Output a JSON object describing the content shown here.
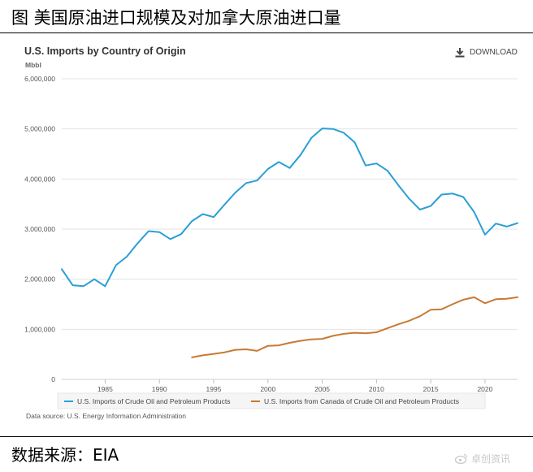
{
  "figure_title": "图 美国原油进口规模及对加拿大原油进口量",
  "download_label": "DOWNLOAD",
  "source_note": "Data source: U.S. Energy Information Administration",
  "data_source_label": "数据来源：EIA",
  "watermark": "卓创资讯",
  "colors": {
    "series_total": "#2a9fd6",
    "series_canada": "#c87a34",
    "grid": "#e3e3e3",
    "axis_text": "#555555"
  },
  "chart_data": {
    "type": "line",
    "title": "U.S. Imports by Country of Origin",
    "ylabel": "Mbbl",
    "xlim": [
      1981,
      2023
    ],
    "ylim": [
      0,
      6000000
    ],
    "x_ticks": [
      1985,
      1990,
      1995,
      2000,
      2005,
      2010,
      2015,
      2020
    ],
    "y_ticks": [
      0,
      1000000,
      2000000,
      3000000,
      4000000,
      5000000,
      6000000
    ],
    "y_tick_labels": [
      "0",
      "1,000,000",
      "2,000,000",
      "3,000,000",
      "4,000,000",
      "5,000,000",
      "6,000,000"
    ],
    "grid": true,
    "legend_position": "bottom",
    "series": [
      {
        "name": "U.S. Imports of Crude Oil and Petroleum Products",
        "color": "#2a9fd6",
        "x": [
          1981,
          1982,
          1983,
          1984,
          1985,
          1986,
          1987,
          1988,
          1989,
          1990,
          1991,
          1992,
          1993,
          1994,
          1995,
          1996,
          1997,
          1998,
          1999,
          2000,
          2001,
          2002,
          2003,
          2004,
          2005,
          2006,
          2007,
          2008,
          2009,
          2010,
          2011,
          2012,
          2013,
          2014,
          2015,
          2016,
          2017,
          2018,
          2019,
          2020,
          2021,
          2022,
          2023
        ],
        "values": [
          2200000,
          1880000,
          1860000,
          2000000,
          1860000,
          2280000,
          2450000,
          2720000,
          2960000,
          2940000,
          2800000,
          2900000,
          3160000,
          3300000,
          3240000,
          3490000,
          3730000,
          3920000,
          3970000,
          4200000,
          4340000,
          4220000,
          4480000,
          4820000,
          5010000,
          5000000,
          4920000,
          4730000,
          4270000,
          4310000,
          4170000,
          3880000,
          3610000,
          3390000,
          3460000,
          3690000,
          3710000,
          3640000,
          3340000,
          2890000,
          3110000,
          3050000,
          3120000
        ]
      },
      {
        "name": "U.S. Imports from Canada of Crude Oil and Petroleum Products",
        "color": "#c87a34",
        "x": [
          1993,
          1994,
          1995,
          1996,
          1997,
          1998,
          1999,
          2000,
          2001,
          2002,
          2003,
          2004,
          2005,
          2006,
          2007,
          2008,
          2009,
          2010,
          2011,
          2012,
          2013,
          2014,
          2015,
          2016,
          2017,
          2018,
          2019,
          2020,
          2021,
          2022,
          2023
        ],
        "values": [
          440000,
          480000,
          510000,
          540000,
          590000,
          600000,
          570000,
          670000,
          680000,
          730000,
          770000,
          800000,
          810000,
          870000,
          910000,
          930000,
          920000,
          940000,
          1020000,
          1100000,
          1170000,
          1260000,
          1390000,
          1400000,
          1500000,
          1590000,
          1640000,
          1520000,
          1600000,
          1610000,
          1640000
        ]
      }
    ]
  }
}
